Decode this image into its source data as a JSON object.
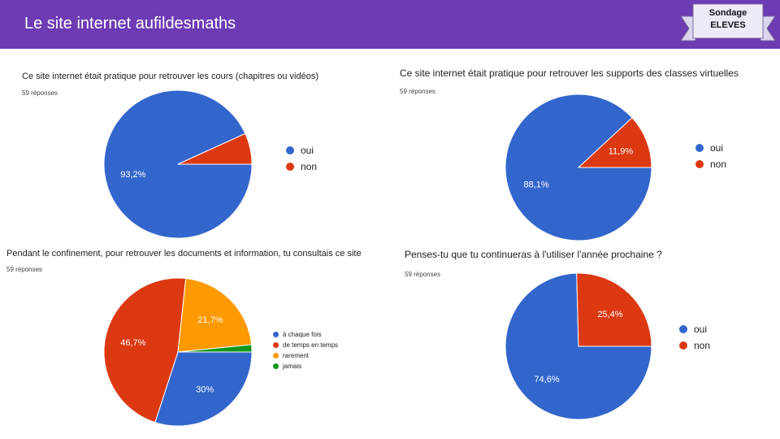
{
  "header": {
    "title": "Le site internet aufildesmaths",
    "color": "#6d3bb3",
    "banner_line1": "Sondage",
    "banner_line2": "ELEVES"
  },
  "chart_data": [
    {
      "type": "pie",
      "title": "Ce site internet était pratique pour retrouver les cours (chapitres ou vidéos)",
      "responses": "59 réponses",
      "categories": [
        "oui",
        "non"
      ],
      "values": [
        93.2,
        6.8
      ],
      "labels": [
        "93,2%",
        ""
      ],
      "colors": [
        "#3366cc",
        "#dc3912"
      ],
      "legend_position": "right"
    },
    {
      "type": "pie",
      "title": "Ce site internet était pratique pour retrouver les supports des classes virtuelles",
      "responses": "59 réponses",
      "categories": [
        "oui",
        "non"
      ],
      "values": [
        88.1,
        11.9
      ],
      "labels": [
        "88,1%",
        "11,9%"
      ],
      "colors": [
        "#3366cc",
        "#dc3912"
      ],
      "legend_position": "right"
    },
    {
      "type": "pie",
      "title": "Pendant le confinement, pour retrouver les documents et information, tu consultais ce site",
      "responses": "59 réponses",
      "categories": [
        "à chaque fois",
        "de temps en temps",
        "rarement",
        "jamais"
      ],
      "values": [
        30,
        46.7,
        21.7,
        1.6
      ],
      "labels": [
        "30%",
        "46,7%",
        "21,7%",
        ""
      ],
      "colors": [
        "#3366cc",
        "#dc3912",
        "#ff9900",
        "#109618"
      ],
      "legend_position": "right"
    },
    {
      "type": "pie",
      "title": "Penses-tu que tu continueras à l'utiliser l'année prochaine ?",
      "responses": "59 réponses",
      "categories": [
        "oui",
        "non"
      ],
      "values": [
        74.6,
        25.4
      ],
      "labels": [
        "74,6%",
        "25,4%"
      ],
      "colors": [
        "#3366cc",
        "#dc3912"
      ],
      "legend_position": "right"
    }
  ]
}
